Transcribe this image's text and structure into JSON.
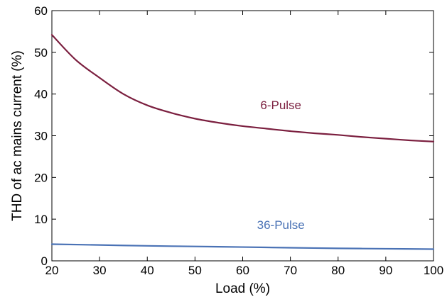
{
  "chart_data": {
    "type": "line",
    "title": "",
    "xlabel": "Load (%)",
    "ylabel": "THD of ac mains current (%)",
    "xlim": [
      20,
      100
    ],
    "ylim": [
      0,
      60
    ],
    "xticks": [
      20,
      30,
      40,
      50,
      60,
      70,
      80,
      90,
      100
    ],
    "yticks": [
      0,
      10,
      20,
      30,
      40,
      50,
      60
    ],
    "grid": false,
    "legend": "none",
    "series": [
      {
        "name": "6-Pulse",
        "color": "#7b1f3f",
        "x": [
          20,
          25,
          30,
          35,
          40,
          45,
          50,
          55,
          60,
          65,
          70,
          75,
          80,
          85,
          90,
          95,
          100
        ],
        "y": [
          54.2,
          48.2,
          43.9,
          40.0,
          37.3,
          35.5,
          34.1,
          33.1,
          32.3,
          31.7,
          31.1,
          30.6,
          30.2,
          29.7,
          29.3,
          28.9,
          28.6
        ]
      },
      {
        "name": "36-Pulse",
        "color": "#4a72b5",
        "x": [
          20,
          30,
          40,
          50,
          60,
          70,
          80,
          90,
          100
        ],
        "y": [
          4.0,
          3.8,
          3.6,
          3.45,
          3.3,
          3.15,
          3.0,
          2.9,
          2.8
        ]
      }
    ]
  }
}
